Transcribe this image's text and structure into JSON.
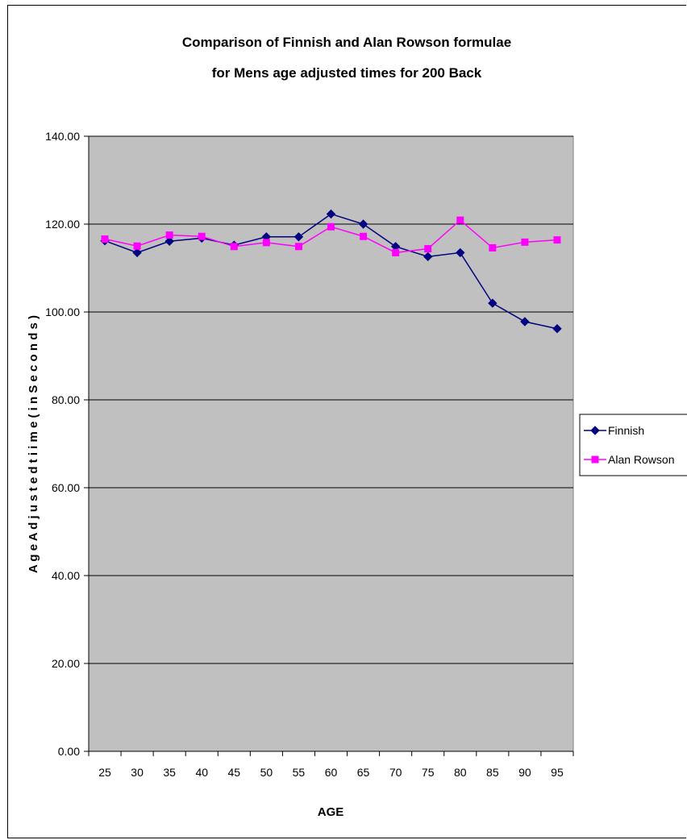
{
  "chart_data": {
    "type": "line",
    "title": "Comparison  of Finnish and Alan Rowson formulae",
    "subtitle": "for Mens age adjusted times for 200 Back",
    "xlabel": "AGE",
    "ylabel": "A g e  A d j u s t e d  t i i m e  ( i n  S e c o n d s )",
    "categories": [
      "25",
      "30",
      "35",
      "40",
      "45",
      "50",
      "55",
      "60",
      "65",
      "70",
      "75",
      "80",
      "85",
      "90",
      "95"
    ],
    "ylim": [
      0,
      140
    ],
    "yticks": [
      "0.00",
      "20.00",
      "40.00",
      "60.00",
      "80.00",
      "100.00",
      "120.00",
      "140.00"
    ],
    "grid": true,
    "legend_position": "right",
    "plot_background": "#c0c0c0",
    "series": [
      {
        "name": "Finnish",
        "color": "#000080",
        "marker": "diamond",
        "values": [
          116.2,
          113.5,
          116.1,
          116.8,
          115.2,
          117.1,
          117.1,
          122.3,
          120.0,
          114.9,
          112.6,
          113.5,
          102.0,
          97.8,
          96.2
        ]
      },
      {
        "name": "Alan Rowson",
        "color": "#ff00ff",
        "marker": "square",
        "values": [
          116.6,
          115.0,
          117.5,
          117.2,
          114.9,
          115.8,
          114.9,
          119.4,
          117.2,
          113.5,
          114.4,
          120.9,
          114.6,
          115.9,
          116.4
        ]
      }
    ]
  }
}
